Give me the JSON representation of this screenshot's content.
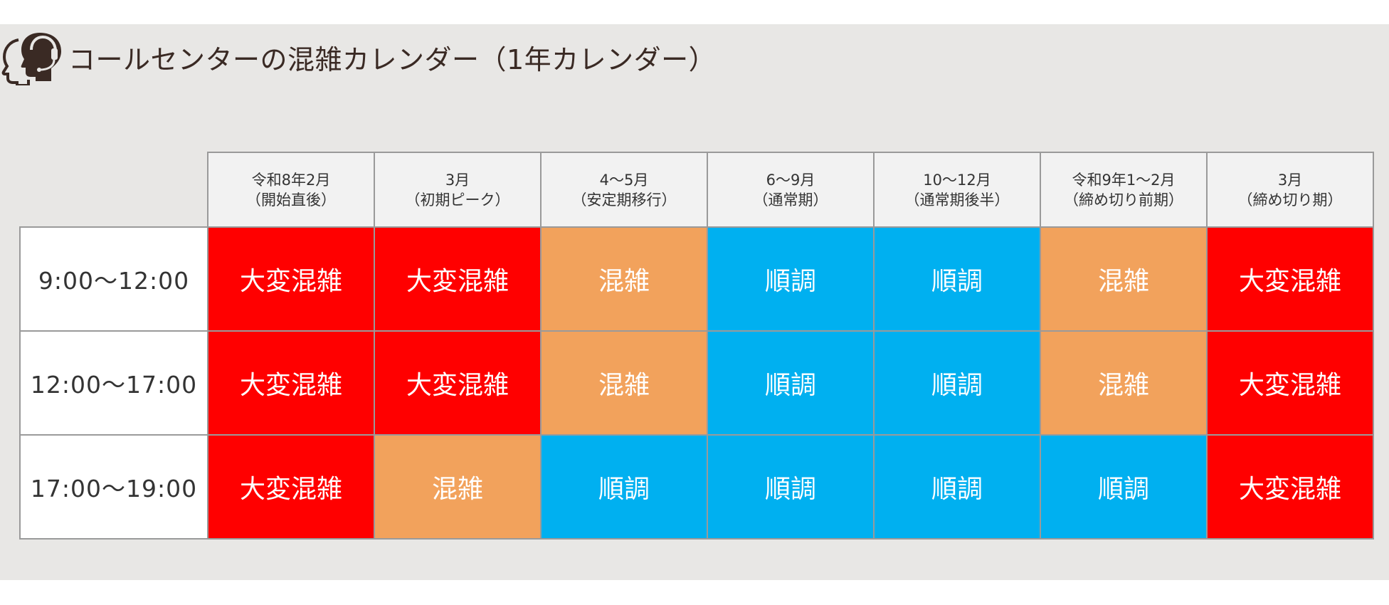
{
  "title": "コールセンターの混雑カレンダー（1年カレンダー）",
  "icon": "headset-operator-icon",
  "colors": {
    "very_busy": "#ff0000",
    "busy": "#f2a25c",
    "smooth": "#00b0f0",
    "header_bg": "#f2f2f2",
    "slide_bg": "#e8e7e5"
  },
  "levels": {
    "very_busy": "大変混雑",
    "busy": "混雑",
    "smooth": "順調"
  },
  "periods": [
    {
      "line1": "令和8年2月",
      "line2": "（開始直後）"
    },
    {
      "line1": "3月",
      "line2": "（初期ピーク）"
    },
    {
      "line1": "4～5月",
      "line2": "（安定期移行）"
    },
    {
      "line1": "6～9月",
      "line2": "（通常期）"
    },
    {
      "line1": "10～12月",
      "line2": "（通常期後半）"
    },
    {
      "line1": "令和9年1～2月",
      "line2": "（締め切り前期）"
    },
    {
      "line1": "3月",
      "line2": "（締め切り期）"
    }
  ],
  "rows": [
    {
      "time": "9:00～12:00",
      "cells": [
        "大変混雑",
        "大変混雑",
        "混雑",
        "順調",
        "順調",
        "混雑",
        "大変混雑"
      ],
      "levels": [
        "very_busy",
        "very_busy",
        "busy",
        "smooth",
        "smooth",
        "busy",
        "very_busy"
      ]
    },
    {
      "time": "12:00～17:00",
      "cells": [
        "大変混雑",
        "大変混雑",
        "混雑",
        "順調",
        "順調",
        "混雑",
        "大変混雑"
      ],
      "levels": [
        "very_busy",
        "very_busy",
        "busy",
        "smooth",
        "smooth",
        "busy",
        "very_busy"
      ]
    },
    {
      "time": "17:00～19:00",
      "cells": [
        "大変混雑",
        "混雑",
        "順調",
        "順調",
        "順調",
        "順調",
        "大変混雑"
      ],
      "levels": [
        "very_busy",
        "busy",
        "smooth",
        "smooth",
        "smooth",
        "smooth",
        "very_busy"
      ]
    }
  ]
}
